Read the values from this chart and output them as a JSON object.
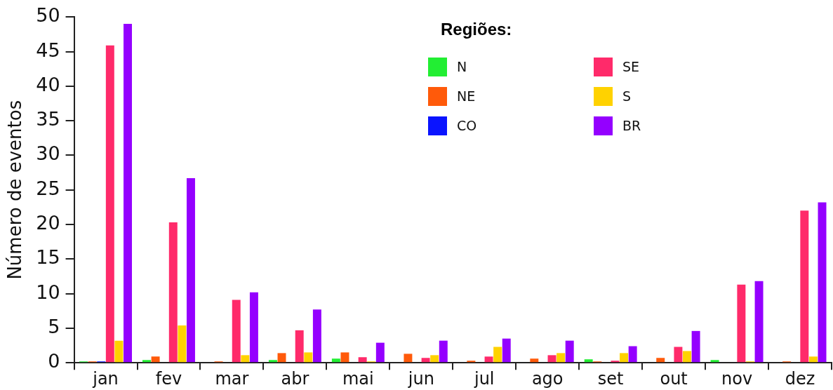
{
  "chart_data": {
    "type": "bar",
    "ylabel": "Número de eventos",
    "legend_title": "Regiões:",
    "legend": "top right",
    "grid": false,
    "categories": [
      "jan",
      "fev",
      "mar",
      "abr",
      "mai",
      "jun",
      "jul",
      "ago",
      "set",
      "out",
      "nov",
      "dez"
    ],
    "ylim": [
      0,
      50
    ],
    "yticks": [
      0,
      5,
      10,
      15,
      20,
      25,
      30,
      35,
      40,
      45,
      50
    ],
    "series": [
      {
        "name": "N",
        "color": "#22ee33",
        "values": [
          0.2,
          0.4,
          0,
          0.4,
          0.6,
          0,
          0,
          0,
          0.5,
          0,
          0.4,
          0
        ]
      },
      {
        "name": "NE",
        "color": "#ff5a0a",
        "values": [
          0.2,
          0.9,
          0.2,
          1.4,
          1.5,
          1.3,
          0.3,
          0.6,
          0.2,
          0.7,
          0,
          0.2
        ]
      },
      {
        "name": "CO",
        "color": "#0a14ff",
        "values": [
          0.2,
          0,
          0,
          0,
          0,
          0,
          0,
          0,
          0,
          0,
          0,
          0
        ]
      },
      {
        "name": "SE",
        "color": "#ff2a6a",
        "values": [
          45.9,
          20.3,
          9.1,
          4.7,
          0.8,
          0.7,
          0.9,
          1.1,
          0.3,
          2.3,
          11.3,
          22.0
        ]
      },
      {
        "name": "S",
        "color": "#ffd200",
        "values": [
          3.2,
          5.4,
          1.1,
          1.5,
          0.2,
          1.1,
          2.3,
          1.4,
          1.4,
          1.7,
          0.2,
          0.9
        ]
      },
      {
        "name": "BR",
        "color": "#9400ff",
        "values": [
          49.0,
          26.7,
          10.2,
          7.7,
          2.9,
          3.2,
          3.5,
          3.2,
          2.4,
          4.6,
          11.8,
          23.2
        ]
      }
    ]
  }
}
